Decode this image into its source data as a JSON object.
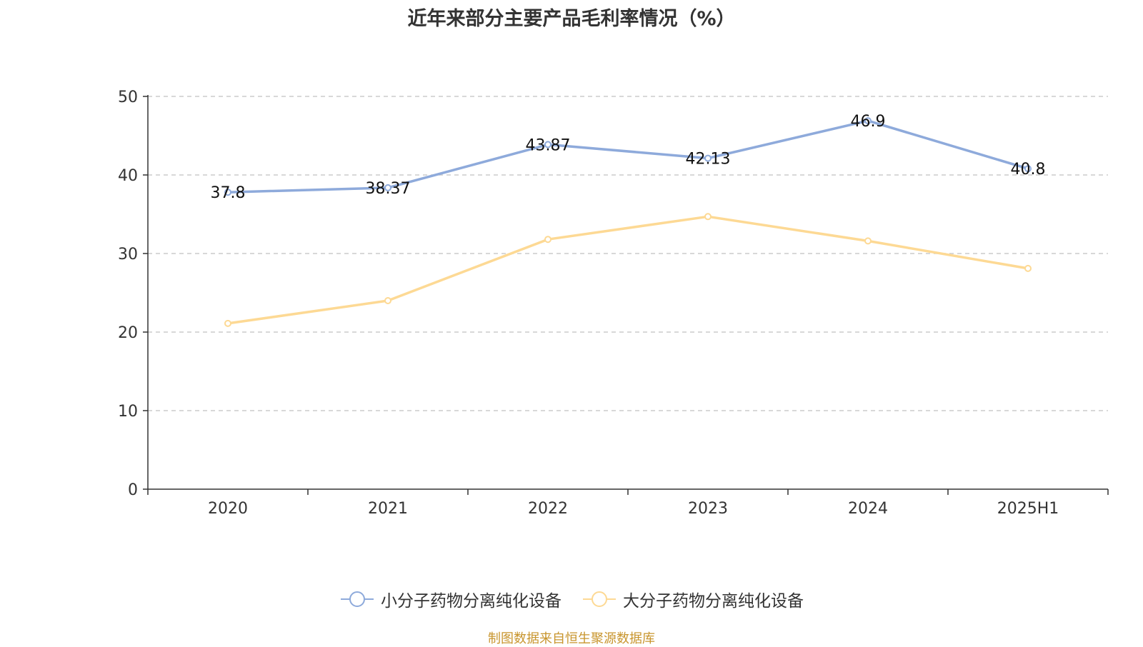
{
  "chart_data": {
    "type": "line",
    "title": "近年来部分主要产品毛利率情况（%）",
    "categories": [
      "2020",
      "2021",
      "2022",
      "2023",
      "2024",
      "2025H1"
    ],
    "ylim": [
      0,
      50
    ],
    "yticks": [
      0,
      10,
      20,
      30,
      40,
      50
    ],
    "grid": true,
    "legend_position": "bottom",
    "series": [
      {
        "name": "小分子药物分离纯化设备",
        "values": [
          37.8,
          38.37,
          43.87,
          42.13,
          46.9,
          40.8
        ],
        "labels": [
          "37.8",
          "38.37",
          "43.87",
          "42.13",
          "46.9",
          "40.8"
        ],
        "color": "#8eaadb",
        "show_labels": true
      },
      {
        "name": "大分子药物分离纯化设备",
        "values": [
          21.1,
          24.0,
          31.8,
          34.7,
          31.6,
          28.1
        ],
        "color": "#fdd994",
        "show_labels": false
      }
    ]
  },
  "source": {
    "text": "制图数据来自恒生聚源数据库",
    "color": "#c8952d"
  }
}
